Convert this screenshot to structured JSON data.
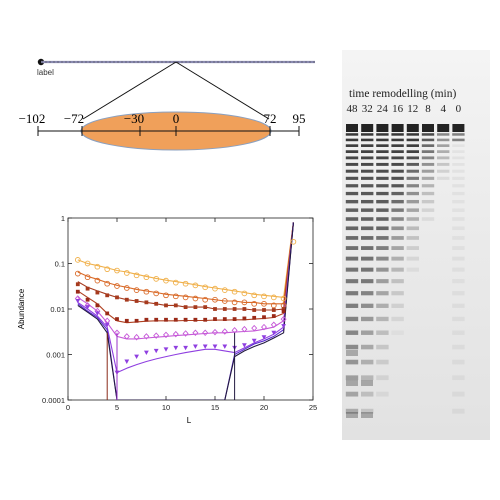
{
  "diagram": {
    "label_text": "label",
    "scale_ticks": [
      "−102",
      "−72",
      "−30",
      "0",
      "72",
      "95"
    ],
    "nucleosome_color": "#f0a05a"
  },
  "gel": {
    "title": "time remodelling (min)",
    "lanes": [
      "48",
      "32",
      "24",
      "16",
      "12",
      "8",
      "4",
      "0"
    ]
  },
  "chart_data": {
    "type": "line",
    "title": "",
    "xlabel": "L",
    "ylabel": "Abundance",
    "xlim": [
      0,
      25
    ],
    "ylim": [
      0.0001,
      1
    ],
    "yscale": "log",
    "xticks": [
      "0",
      "5",
      "10",
      "15",
      "20",
      "25"
    ],
    "yticks": [
      "0.0001",
      "0.001",
      "0.01",
      "0.1",
      "1"
    ],
    "grid": false,
    "colors": [
      "#f0b04a",
      "#d96a28",
      "#a63a1e",
      "#b04020",
      "#c65ad8",
      "#8f3fe0",
      "#5a2ad0",
      "#231a40"
    ],
    "series": [
      {
        "x": [
          1,
          2,
          3,
          4,
          5,
          6,
          7,
          8,
          9,
          10,
          11,
          12,
          13,
          14,
          15,
          16,
          17,
          18,
          19,
          20,
          21,
          22,
          23
        ],
        "values": [
          0.12,
          0.1,
          0.09,
          0.08,
          0.07,
          0.065,
          0.058,
          0.052,
          0.047,
          0.043,
          0.04,
          0.037,
          0.034,
          0.031,
          0.029,
          0.027,
          0.025,
          0.023,
          0.021,
          0.02,
          0.019,
          0.018,
          0.8
        ]
      },
      {
        "x": [
          1,
          2,
          3,
          4,
          5,
          6,
          7,
          8,
          9,
          10,
          11,
          12,
          13,
          14,
          15,
          16,
          17,
          18,
          19,
          20,
          21,
          22,
          23
        ],
        "values": [
          0.065,
          0.052,
          0.045,
          0.038,
          0.033,
          0.03,
          0.027,
          0.025,
          0.023,
          0.021,
          0.02,
          0.019,
          0.018,
          0.017,
          0.016,
          0.015,
          0.015,
          0.014,
          0.014,
          0.013,
          0.013,
          0.013,
          0.8
        ]
      },
      {
        "x": [
          1,
          2,
          3,
          4,
          5,
          6,
          7,
          8,
          9,
          10,
          11,
          12,
          13,
          14,
          15,
          16,
          17,
          18,
          19,
          20,
          21,
          22,
          23
        ],
        "values": [
          0.04,
          0.03,
          0.025,
          0.021,
          0.018,
          0.016,
          0.015,
          0.014,
          0.013,
          0.012,
          0.012,
          0.011,
          0.011,
          0.011,
          0.01,
          0.01,
          0.01,
          0.01,
          0.0095,
          0.0095,
          0.0095,
          0.01,
          0.8
        ]
      },
      {
        "x": [
          1,
          2,
          3,
          4,
          5,
          6,
          7,
          8,
          9,
          10,
          11,
          12,
          13,
          14,
          15,
          16,
          17,
          18,
          19,
          20,
          21,
          22,
          23
        ],
        "values": [
          0.025,
          0.018,
          0.013,
          0.008,
          0.0055,
          0.005,
          0.0052,
          0.0054,
          0.0055,
          0.0055,
          0.0055,
          0.0056,
          0.0056,
          0.0056,
          0.0057,
          0.0057,
          0.0058,
          0.0058,
          0.006,
          0.0062,
          0.0065,
          0.008,
          0.8
        ]
      },
      {
        "x": [
          1,
          2,
          3,
          4,
          5,
          6,
          7,
          8,
          9,
          10,
          11,
          12,
          13,
          14,
          15,
          16,
          17,
          18,
          19,
          20,
          21,
          22,
          23
        ],
        "values": [
          0.018,
          0.013,
          0.009,
          0.005,
          0.0025,
          0.0022,
          0.0022,
          0.0023,
          0.0024,
          0.0025,
          0.0026,
          0.0027,
          0.0028,
          0.0029,
          0.003,
          0.003,
          0.0031,
          0.0032,
          0.0033,
          0.0036,
          0.004,
          0.0055,
          0.8
        ]
      },
      {
        "x": [
          1,
          2,
          3,
          4,
          5,
          6,
          7,
          8,
          9,
          10,
          11,
          12,
          13,
          14,
          15,
          16,
          17,
          18,
          19,
          20,
          21,
          22,
          23
        ],
        "values": [
          0.014,
          0.01,
          0.007,
          0.004,
          0.0004,
          0.0005,
          0.0006,
          0.0007,
          0.0008,
          0.0009,
          0.001,
          0.0011,
          0.0012,
          0.0013,
          0.0013,
          0.0012,
          0.0011,
          0.0014,
          0.0018,
          0.0022,
          0.0028,
          0.004,
          0.8
        ]
      },
      {
        "x": [
          1,
          2,
          3,
          4,
          5,
          6,
          7,
          8,
          9,
          10,
          11,
          12,
          13,
          14,
          15,
          16,
          17,
          18,
          19,
          20,
          21,
          22,
          23
        ],
        "values": [
          0.013,
          0.009,
          0.0065,
          0.0035,
          0.0001,
          0.0001,
          0.0001,
          0.0001,
          0.0001,
          0.0001,
          0.0001,
          0.0001,
          0.0001,
          0.0001,
          0.0001,
          0.0001,
          0.001,
          0.0013,
          0.0017,
          0.002,
          0.0025,
          0.0035,
          0.8
        ]
      },
      {
        "x": [
          1,
          2,
          3,
          4,
          5,
          6,
          7,
          8,
          9,
          10,
          11,
          12,
          13,
          14,
          15,
          16,
          17,
          18,
          19,
          20,
          21,
          22,
          23
        ],
        "values": [
          0.012,
          0.0085,
          0.006,
          0.003,
          0.0001,
          0.0001,
          0.0001,
          0.0001,
          0.0001,
          0.0001,
          0.0001,
          0.0001,
          0.0001,
          0.0001,
          0.0001,
          0.0001,
          0.0009,
          0.0012,
          0.0015,
          0.0018,
          0.0023,
          0.003,
          0.8
        ]
      }
    ],
    "points": [
      {
        "marker": "circle",
        "x": [
          1,
          2,
          3,
          4,
          5,
          6,
          7,
          8,
          9,
          10,
          11,
          12,
          13,
          14,
          15,
          16,
          17,
          18,
          19,
          20,
          21,
          22,
          23
        ],
        "values": [
          0.12,
          0.1,
          0.085,
          0.075,
          0.07,
          0.062,
          0.055,
          0.05,
          0.046,
          0.042,
          0.038,
          0.036,
          0.033,
          0.03,
          0.028,
          0.026,
          0.024,
          0.022,
          0.02,
          0.019,
          0.018,
          0.017,
          0.3
        ]
      },
      {
        "marker": "circle",
        "x": [
          1,
          2,
          3,
          4,
          5,
          6,
          7,
          8,
          9,
          10,
          11,
          12,
          13,
          14,
          15,
          16,
          17,
          18,
          19,
          20,
          21,
          22
        ],
        "values": [
          0.06,
          0.05,
          0.042,
          0.036,
          0.032,
          0.029,
          0.026,
          0.024,
          0.022,
          0.02,
          0.019,
          0.018,
          0.017,
          0.016,
          0.016,
          0.015,
          0.014,
          0.014,
          0.013,
          0.013,
          0.012,
          0.012
        ]
      },
      {
        "marker": "square",
        "x": [
          1,
          2,
          3,
          4,
          5,
          6,
          7,
          8,
          9,
          10,
          11,
          12,
          13,
          14,
          15,
          16,
          17,
          18,
          19,
          20,
          21,
          22
        ],
        "values": [
          0.035,
          0.028,
          0.023,
          0.02,
          0.018,
          0.016,
          0.015,
          0.014,
          0.013,
          0.012,
          0.012,
          0.011,
          0.011,
          0.011,
          0.01,
          0.01,
          0.01,
          0.01,
          0.0095,
          0.0095,
          0.0095,
          0.01
        ]
      },
      {
        "marker": "square",
        "x": [
          1,
          2,
          3,
          4,
          5,
          6,
          7,
          8,
          9,
          10,
          11,
          12,
          13,
          14,
          15,
          16,
          17,
          18,
          19,
          20,
          21,
          22
        ],
        "values": [
          0.024,
          0.016,
          0.012,
          0.008,
          0.006,
          0.0055,
          0.0055,
          0.0058,
          0.0058,
          0.0058,
          0.0058,
          0.0058,
          0.0058,
          0.0058,
          0.006,
          0.006,
          0.006,
          0.0062,
          0.0064,
          0.0066,
          0.007,
          0.009
        ]
      },
      {
        "marker": "diamond",
        "x": [
          1,
          2,
          3,
          4,
          5,
          6,
          7,
          8,
          9,
          10,
          11,
          12,
          13,
          14,
          15,
          16,
          17,
          18,
          19,
          20,
          21,
          22
        ],
        "values": [
          0.017,
          0.012,
          0.009,
          0.0055,
          0.003,
          0.0025,
          0.0024,
          0.0025,
          0.0026,
          0.0027,
          0.0028,
          0.0029,
          0.003,
          0.003,
          0.0031,
          0.0032,
          0.0034,
          0.0036,
          0.0038,
          0.004,
          0.0045,
          0.006
        ]
      },
      {
        "marker": "triangle",
        "x": [
          1,
          2,
          3,
          4,
          5,
          6,
          7,
          8,
          9,
          10,
          11,
          12,
          13,
          14,
          15,
          16,
          17,
          18,
          19,
          20,
          21,
          22
        ],
        "values": [
          0.015,
          0.011,
          0.008,
          0.0045,
          0.0004,
          0.0007,
          0.0009,
          0.0011,
          0.0012,
          0.0013,
          0.0014,
          0.0014,
          0.0015,
          0.0015,
          0.0015,
          0.0015,
          0.0014,
          0.0016,
          0.002,
          0.0024,
          0.003,
          0.0042
        ]
      }
    ]
  }
}
